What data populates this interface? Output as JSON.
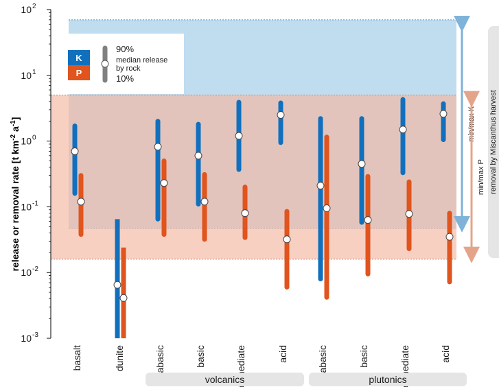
{
  "chart_data": {
    "type": "range",
    "ylabel": "release or removal rate [t km",
    "ylabel_sup1": "-2",
    "ylabel_mid": " a",
    "ylabel_sup2": "-1",
    "ylabel_end": "]",
    "yscale": "log",
    "ylim": [
      0.001,
      100
    ],
    "yticks": [
      {
        "value": 0.001,
        "base": "10",
        "exp": "-3"
      },
      {
        "value": 0.01,
        "base": "10",
        "exp": "-2"
      },
      {
        "value": 0.1,
        "base": "10",
        "exp": "-1"
      },
      {
        "value": 1,
        "base": "10",
        "exp": "0"
      },
      {
        "value": 10,
        "base": "10",
        "exp": "1"
      },
      {
        "value": 100,
        "base": "10",
        "exp": "2"
      }
    ],
    "categories": [
      "basalt",
      "dunite",
      "ultrabasic",
      "basic",
      "intermediate",
      "acid",
      "ultrabasic",
      "basic",
      "intermediate",
      "acid"
    ],
    "groups": [
      {
        "label": "volcanics",
        "from": 2,
        "to": 5
      },
      {
        "label": "plutonics",
        "from": 6,
        "to": 9
      }
    ],
    "series": [
      {
        "name": "K",
        "color": "#1170bd",
        "low": [
          0.16,
          0.001,
          0.065,
          0.11,
          0.37,
          0.95,
          0.008,
          0.058,
          0.33,
          1.05
        ],
        "median": [
          0.7,
          0.0065,
          0.82,
          0.6,
          1.2,
          2.5,
          0.21,
          0.45,
          1.5,
          2.6
        ],
        "high": [
          1.7,
          0.065,
          2.0,
          1.8,
          3.9,
          3.8,
          2.2,
          2.2,
          4.3,
          3.7
        ]
      },
      {
        "name": "P",
        "color": "#e0541e",
        "low": [
          0.038,
          0.001,
          0.038,
          0.032,
          0.034,
          0.006,
          0.0042,
          0.0095,
          0.023,
          0.0072
        ],
        "median": [
          0.12,
          0.0041,
          0.23,
          0.12,
          0.08,
          0.032,
          0.095,
          0.063,
          0.078,
          0.035
        ],
        "high": [
          0.3,
          0.024,
          0.5,
          0.31,
          0.2,
          0.085,
          1.15,
          0.29,
          0.24,
          0.08
        ]
      }
    ],
    "bands": [
      {
        "name": "min/max K",
        "color": "#9ecae6",
        "min": 0.047,
        "max": 70
      },
      {
        "name": "min/max P",
        "color": "#f5b7a0",
        "min": 0.016,
        "max": 5.0
      }
    ],
    "legend": {
      "k_label": "K",
      "p_label": "P",
      "top": "90%",
      "middle_line1": "median release",
      "middle_line2": "by rock",
      "bottom": "10%"
    },
    "side_label": "removal by Miscanthus harvest"
  }
}
